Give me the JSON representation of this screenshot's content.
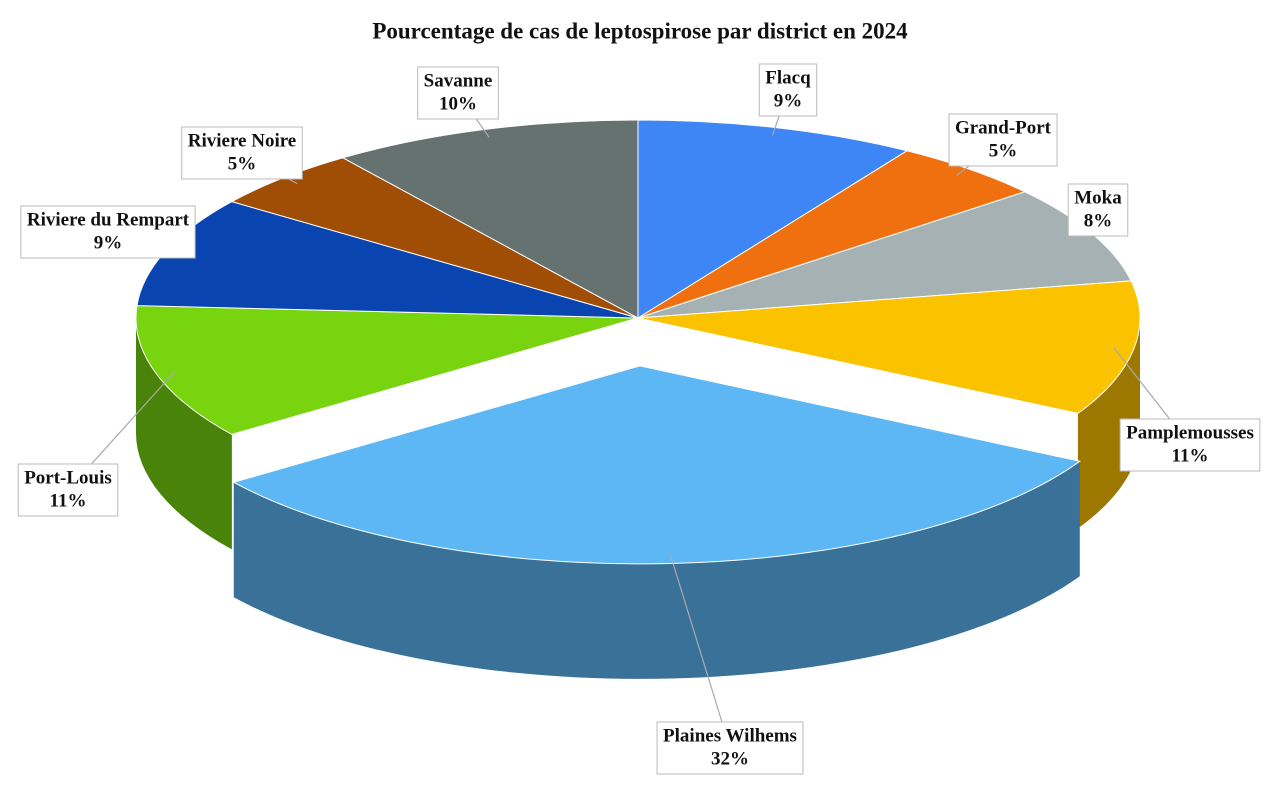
{
  "chart_data": {
    "type": "pie",
    "title": "Pourcentage de cas de leptospirose par district  en 2024",
    "categories": [
      "Flacq",
      "Grand-Port",
      "Moka",
      "Pamplemousses",
      "Plaines Wilhems",
      "Port-Louis",
      "Riviere du Rempart",
      "Riviere Noire",
      "Savanne"
    ],
    "values": [
      9,
      5,
      8,
      11,
      32,
      11,
      9,
      5,
      10
    ],
    "value_labels": [
      "9%",
      "5%",
      "8%",
      "11%",
      "32%",
      "11%",
      "9%",
      "5%",
      "10%"
    ],
    "colors": [
      "#3e86f5",
      "#f07010",
      "#a5b1b3",
      "#fbc200",
      "#5db7f5",
      "#78d40e",
      "#0a44b0",
      "#a04d05",
      "#667270"
    ]
  }
}
